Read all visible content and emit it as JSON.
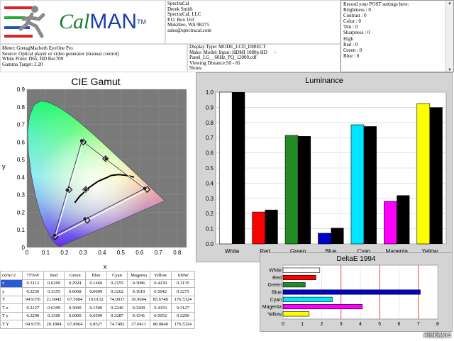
{
  "logo": {
    "text_a": "Cal",
    "text_b": "MAN",
    "tm": "TM"
  },
  "company": {
    "lines": [
      "SpectraCal",
      "Derek Smith",
      "SpectraCal, LLC",
      "P.O. Box 163",
      "Mukilteo, WA 98275",
      "sales@spectracal.com"
    ]
  },
  "notes": {
    "lines": [
      "Record your POST settings here:",
      "",
      "Brightness : 0",
      "Contrast     : 0",
      "Color           : 0",
      "Tint             : 0",
      "Sharpness : 0",
      "",
      "High",
      "Red      : 0",
      "Green  : 0",
      "Blue    : 0"
    ]
  },
  "meter_info": {
    "lines": [
      "Meter: GretagMacbeth EyeOne Pro",
      "Source: Optical player or video generator (manual control)",
      "White Point: D65, HD Rec709",
      "Gamma Target: 2.20"
    ]
  },
  "display_info": {
    "lines": [
      "Display Type: MODE_LCD_DIRECT",
      "Make: Model: Input: HDMI 1080p HD",
      "Panel_LG__60Hz_PQ_12000.cdf",
      "Viewing Distance:50 - 81",
      "Notes:"
    ],
    "dash": "-"
  },
  "watermark": "#895264",
  "colors": {
    "white": "#ffffff",
    "black": "#000000",
    "red": "#ff0000",
    "green": "#228b22",
    "blue": "#0000cc",
    "cyan": "#00e5ff",
    "magenta": "#ff00ff",
    "yellow": "#ffff00"
  },
  "cie_chart": {
    "title": "CIE Gamut",
    "xlabel": "x",
    "ylabel": "y",
    "x_ticks": [
      "0",
      "0.1",
      "0.2",
      "0.3",
      "0.4",
      "0.5",
      "0.6",
      "0.7",
      "0.8"
    ],
    "y_ticks": [
      "0",
      "0.1",
      "0.2",
      "0.3",
      "0.4",
      "0.5",
      "0.6",
      "0.7",
      "0.8",
      "0.9"
    ]
  },
  "table": {
    "headers": [
      "cd/m^2",
      "75%W",
      "Red",
      "Green",
      "Blue",
      "Cyan",
      "Magenta",
      "Yellow",
      "100W"
    ],
    "rows": [
      [
        "x",
        "0.3112",
        "0.6269",
        "0.2924",
        "0.1460",
        "0.2155",
        "0.3086",
        "0.4230",
        "0.3135"
      ],
      [
        "y",
        "0.3250",
        "0.3355",
        "0.6068",
        "0.0699",
        "0.3262",
        "0.1619",
        "0.5042",
        "0.3275"
      ],
      [
        "Y",
        "94.9376",
        "21.6042",
        "67.5684",
        "10.0132",
        "74.0037",
        "30.9604",
        "85.6748",
        "176.5324"
      ],
      [
        "T x",
        "0.3127",
        "0.6399",
        "0.3000",
        "0.1500",
        "0.2246",
        "0.3209",
        "0.4193",
        "0.3127"
      ],
      [
        "T y",
        "0.3290",
        "0.3300",
        "0.6000",
        "0.0599",
        "0.3287",
        "0.1541",
        "0.5052",
        "0.3290"
      ],
      [
        "T Y",
        "94.9376",
        "20.1884",
        "67.8964",
        "6.8527",
        "74.7492",
        "27.0411",
        "88.0848",
        "176.5324"
      ]
    ]
  },
  "chart_data": [
    {
      "type": "scatter",
      "title": "CIE Gamut",
      "xlabel": "x",
      "ylabel": "y",
      "xlim": [
        0,
        0.85
      ],
      "ylim": [
        0,
        0.9
      ],
      "series": [
        {
          "marker": "circle",
          "points": [
            [
              0.6269,
              0.3355
            ],
            [
              0.2924,
              0.6068
            ],
            [
              0.146,
              0.0699
            ],
            [
              0.2155,
              0.3262
            ],
            [
              0.3086,
              0.1619
            ],
            [
              0.423,
              0.5042
            ],
            [
              0.3112,
              0.325
            ],
            [
              0.3135,
              0.3275
            ]
          ]
        },
        {
          "marker": "diamond",
          "points": [
            [
              0.6399,
              0.33
            ],
            [
              0.3,
              0.6
            ],
            [
              0.15,
              0.0599
            ],
            [
              0.2246,
              0.3287
            ],
            [
              0.3209,
              0.1541
            ],
            [
              0.4193,
              0.5052
            ],
            [
              0.3127,
              0.329
            ]
          ]
        }
      ]
    },
    {
      "type": "bar",
      "title": "Luminance",
      "categories": [
        "White",
        "Red",
        "Green",
        "Blue",
        "Cyan",
        "Magenta",
        "Yellow"
      ],
      "ylim": [
        0,
        1.0
      ],
      "y_ticks": [
        "0.0",
        "0.1",
        "0.2",
        "0.3",
        "0.4",
        "0.5",
        "0.6",
        "0.7",
        "0.8",
        "0.9",
        "1.0"
      ],
      "series": [
        {
          "values": [
            1.0,
            0.21,
            0.715,
            0.07,
            0.785,
            0.28,
            0.925
          ]
        },
        {
          "values": [
            1.0,
            0.225,
            0.71,
            0.105,
            0.775,
            0.32,
            0.9
          ]
        }
      ]
    },
    {
      "type": "bar",
      "orientation": "horizontal",
      "title": "DeltaE 1994",
      "categories": [
        "White",
        "Red",
        "Green",
        "Blue",
        "Cyan",
        "Magenta",
        "Yellow"
      ],
      "xlim": [
        0,
        8
      ],
      "x_ticks": [
        "0",
        "1",
        "2",
        "3",
        "4",
        "5",
        "6",
        "7",
        "8"
      ],
      "values": [
        1.9,
        1.7,
        1.15,
        7.1,
        2.55,
        4.1,
        1.35
      ]
    }
  ]
}
